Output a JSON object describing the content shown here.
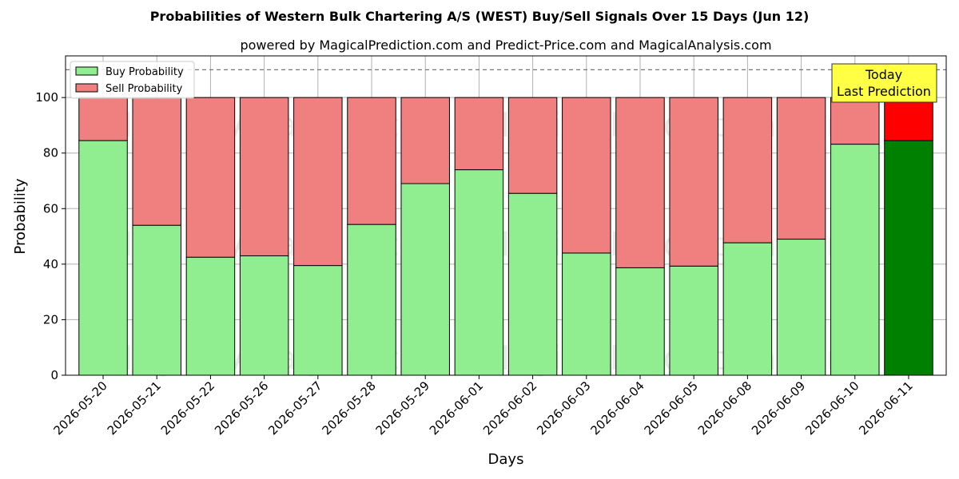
{
  "chart_data": {
    "type": "bar",
    "stacked": true,
    "title": "Probabilities of Western Bulk Chartering A/S (WEST) Buy/Sell Signals Over 15 Days (Jun 12)",
    "subtitle": "powered by MagicalPrediction.com and Predict-Price.com and MagicalAnalysis.com",
    "xlabel": "Days",
    "ylabel": "Probability",
    "ylim": [
      0,
      115
    ],
    "yticks": [
      0,
      20,
      40,
      60,
      80,
      100
    ],
    "grid": true,
    "reference_line": 110,
    "legend_position": "top-left",
    "categories": [
      "2026-05-20",
      "2026-05-21",
      "2026-05-22",
      "2026-05-26",
      "2026-05-27",
      "2026-05-28",
      "2026-05-29",
      "2026-06-01",
      "2026-06-02",
      "2026-06-03",
      "2026-06-04",
      "2026-06-05",
      "2026-06-08",
      "2026-06-09",
      "2026-06-10",
      "2026-06-11"
    ],
    "series": [
      {
        "name": "Buy Probability",
        "color": "#90ee90",
        "highlight_color": "#008000",
        "values": [
          84.5,
          54,
          42.5,
          43,
          39.5,
          54.3,
          69,
          74,
          65.5,
          44,
          38.7,
          39.3,
          47.7,
          49,
          83.2,
          84.5
        ]
      },
      {
        "name": "Sell Probability",
        "color": "#f08080",
        "highlight_color": "#ff0000",
        "values": [
          15.5,
          46,
          57.5,
          57,
          60.5,
          45.7,
          31,
          26,
          34.5,
          56,
          61.3,
          60.7,
          52.3,
          51,
          16.8,
          15.5
        ]
      }
    ],
    "highlight_index": 15,
    "annotation": {
      "lines": [
        "Today",
        "Last Prediction"
      ],
      "bg": "#ffff44"
    },
    "watermarks": [
      "MagicalAnalysis.com",
      "MagicalPrediction.com"
    ]
  }
}
